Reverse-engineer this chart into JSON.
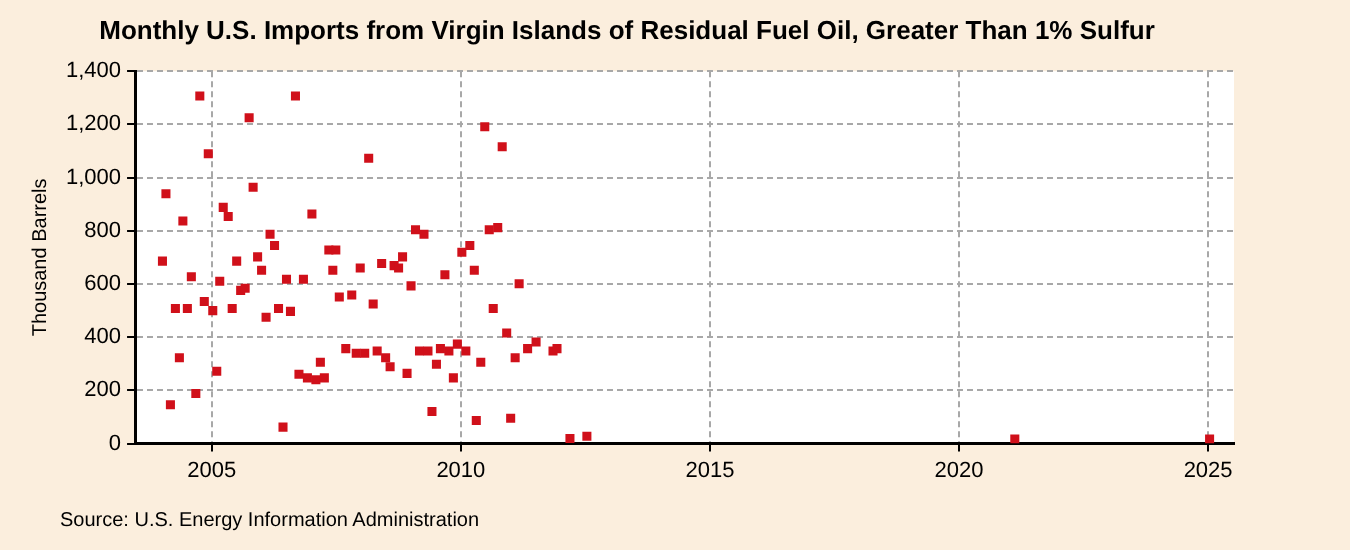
{
  "chart_data": {
    "type": "scatter",
    "title": "Monthly U.S. Imports from Virgin Islands of Residual Fuel Oil, Greater Than 1% Sulfur",
    "ylabel": "Thousand Barrels",
    "annotations": [
      "Source: U.S. Energy Information Administration"
    ],
    "x": [
      2004.01,
      2004.08,
      2004.17,
      2004.27,
      2004.35,
      2004.42,
      2004.51,
      2004.59,
      2004.68,
      2004.76,
      2004.85,
      2004.93,
      2005.02,
      2005.1,
      2005.16,
      2005.23,
      2005.33,
      2005.41,
      2005.5,
      2005.58,
      2005.67,
      2005.75,
      2005.83,
      2005.92,
      2006.0,
      2006.09,
      2006.17,
      2006.26,
      2006.34,
      2006.43,
      2006.5,
      2006.58,
      2006.68,
      2006.75,
      2006.84,
      2006.92,
      2007.01,
      2007.09,
      2007.18,
      2007.26,
      2007.35,
      2007.43,
      2007.49,
      2007.56,
      2007.69,
      2007.81,
      2007.9,
      2007.98,
      2008.07,
      2008.15,
      2008.24,
      2008.32,
      2008.41,
      2008.49,
      2008.58,
      2008.66,
      2008.75,
      2008.83,
      2008.92,
      2009.0,
      2009.09,
      2009.17,
      2009.26,
      2009.34,
      2009.42,
      2009.51,
      2009.59,
      2009.68,
      2009.76,
      2009.85,
      2009.93,
      2010.02,
      2010.1,
      2010.18,
      2010.27,
      2010.31,
      2010.4,
      2010.48,
      2010.57,
      2010.65,
      2010.74,
      2010.83,
      2010.92,
      2011.0,
      2011.09,
      2011.17,
      2011.34,
      2011.51,
      2011.85,
      2011.93,
      2012.19,
      2012.53,
      2021.12,
      2025.03
    ],
    "values": [
      686,
      939,
      146,
      508,
      323,
      837,
      508,
      627,
      188,
      1307,
      534,
      1090,
      500,
      272,
      610,
      888,
      854,
      508,
      686,
      576,
      584,
      1225,
      964,
      702,
      652,
      475,
      787,
      745,
      508,
      62,
      618,
      497,
      1307,
      261,
      618,
      247,
      863,
      240,
      306,
      247,
      728,
      652,
      728,
      551,
      357,
      559,
      340,
      660,
      340,
      1073,
      525,
      348,
      677,
      323,
      289,
      669,
      660,
      702,
      264,
      593,
      804,
      348,
      787,
      348,
      121,
      298,
      357,
      635,
      348,
      247,
      374,
      719,
      348,
      745,
      652,
      87,
      306,
      1191,
      804,
      508,
      812,
      1116,
      416,
      95,
      323,
      601,
      357,
      382,
      348,
      357,
      19,
      28,
      17,
      17
    ],
    "color": "#d0101a",
    "marker": "square",
    "grid": true,
    "legend": false,
    "xlim": [
      2003.46,
      2025.52
    ],
    "xticks": [
      2005,
      2010,
      2015,
      2020,
      2025
    ],
    "ylim": [
      0,
      1400
    ],
    "yticks": [
      0,
      200,
      400,
      600,
      800,
      {
        "value": 1000,
        "label": "1,000"
      },
      {
        "value": 1200,
        "label": "1,200"
      },
      {
        "value": 1400,
        "label": "1,400"
      }
    ]
  }
}
